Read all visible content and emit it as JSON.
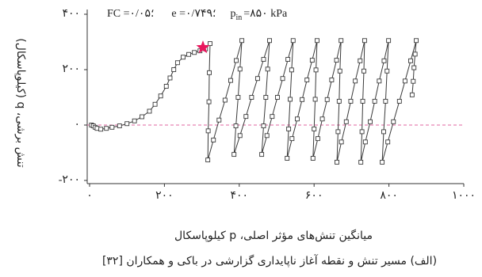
{
  "chart_data": {
    "type": "line",
    "marker": "square",
    "color": "#3a3a3a",
    "annotations": [
      "FC =۰/۰۵؛",
      "e =۰/۷۴۹؛",
      "p",
      "in",
      "=۸۵۰ kPa"
    ],
    "xlabel": "میانگین تنش‌های مؤثر اصلی، p کیلوپاسکال",
    "ylabel": "تنش برشی، q (کیلوپاسکال)",
    "caption": "(الف) مسیر تنش و نقطه آغاز ناپایداری گزارشی در باکی و همکاران [۳۲]",
    "xlim": [
      0,
      1000
    ],
    "ylim": [
      -200,
      400
    ],
    "xticks": [
      {
        "value": 0,
        "label": "۰"
      },
      {
        "value": 200,
        "label": "۲۰۰"
      },
      {
        "value": 400,
        "label": "۴۰۰"
      },
      {
        "value": 600,
        "label": "۶۰۰"
      },
      {
        "value": 800,
        "label": "۸۰۰"
      },
      {
        "value": 1000,
        "label": "۱۰۰۰"
      }
    ],
    "yticks": [
      {
        "value": -200,
        "label": "-۲۰۰"
      },
      {
        "value": 0,
        "label": "۰"
      },
      {
        "value": 200,
        "label": "۲۰۰"
      },
      {
        "value": 400,
        "label": "۴۰۰"
      }
    ],
    "reference_line": {
      "value": 0,
      "color": "#e066a0"
    },
    "instability_point": {
      "x": 303,
      "y": 280,
      "color": "#e8175d"
    },
    "x": [
      5,
      10,
      15,
      20,
      30,
      45,
      60,
      80,
      100,
      120,
      140,
      160,
      175,
      190,
      205,
      215,
      225,
      235,
      250,
      265,
      280,
      295,
      310,
      322,
      320,
      319,
      317,
      316,
      331,
      346,
      362,
      377,
      392,
      407,
      402,
      397,
      391,
      386,
      402,
      418,
      433,
      449,
      465,
      481,
      476,
      471,
      465,
      460,
      474,
      488,
      502,
      516,
      530,
      544,
      540,
      536,
      532,
      528,
      541,
      555,
      568,
      581,
      595,
      608,
      605,
      603,
      600,
      597,
      610,
      622,
      635,
      647,
      660,
      672,
      669,
      667,
      664,
      661,
      673,
      686,
      698,
      710,
      723,
      735,
      733,
      730,
      728,
      725,
      737,
      750,
      762,
      774,
      787,
      799,
      795,
      791,
      786,
      782,
      797,
      812,
      828,
      843,
      858,
      873,
      870,
      867,
      865,
      862
    ],
    "values": [
      0,
      -3,
      -8,
      -12,
      -15,
      -12,
      -8,
      -3,
      5,
      15,
      30,
      50,
      75,
      105,
      140,
      170,
      200,
      225,
      245,
      255,
      262,
      268,
      275,
      294,
      189,
      84,
      -21,
      -126,
      -54,
      18,
      90,
      161,
      233,
      305,
      202,
      100,
      -3,
      -106,
      -38,
      31,
      100,
      168,
      237,
      305,
      202,
      100,
      -3,
      -106,
      -38,
      31,
      100,
      168,
      237,
      305,
      199,
      93,
      -14,
      -120,
      -49,
      22,
      92,
      163,
      234,
      305,
      199,
      93,
      -14,
      -120,
      -49,
      22,
      92,
      163,
      234,
      305,
      195,
      86,
      -24,
      -134,
      -61,
      12,
      86,
      159,
      232,
      305,
      195,
      86,
      -24,
      -134,
      -61,
      12,
      86,
      159,
      232,
      305,
      195,
      86,
      -24,
      -134,
      -61,
      12,
      86,
      159,
      232,
      305,
      256,
      207,
      158,
      109
    ]
  }
}
